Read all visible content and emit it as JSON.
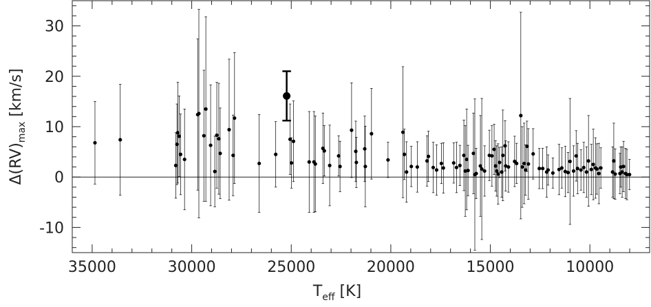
{
  "chart_data": {
    "type": "scatter",
    "xlabel": {
      "main": "T",
      "sub": "eff",
      "rest": " [K]"
    },
    "ylabel": {
      "main": "Δ(RV)",
      "sub": "max",
      "rest": " [km/s]"
    },
    "xlim": [
      36000,
      7000
    ],
    "ylim": [
      -15,
      35
    ],
    "xticks": [
      35000,
      30000,
      25000,
      20000,
      15000,
      10000
    ],
    "yticks": [
      -10,
      0,
      10,
      20,
      30
    ],
    "xticks_minor": [
      34000,
      33000,
      32000,
      31000,
      29000,
      28000,
      27000,
      26000,
      24000,
      23000,
      22000,
      21000,
      19000,
      18000,
      17000,
      16000,
      14000,
      13000,
      12000,
      11000,
      9000,
      8000
    ],
    "yticks_minor": [
      -14,
      -12,
      -8,
      -6,
      -4,
      -2,
      2,
      4,
      6,
      8,
      12,
      14,
      16,
      18,
      22,
      24,
      26,
      28,
      32,
      34
    ],
    "hline": 0,
    "series": [
      {
        "color": "#000000",
        "marker_size": 2.6,
        "line_width": 0.7,
        "x": [
          34860,
          33590,
          30800,
          30740,
          30700,
          30630,
          30560,
          30360,
          29700,
          29640,
          29390,
          29290,
          29050,
          28840,
          28740,
          28640,
          28570,
          28120,
          27920,
          27850,
          26610,
          25780,
          25060,
          24990,
          24890,
          24100,
          23860,
          23790,
          23410,
          23340,
          23070,
          22620,
          22550,
          21970,
          21760,
          21730,
          21310,
          21280,
          20970,
          20140,
          19390,
          19320,
          19210,
          18970,
          18670,
          18180,
          18110,
          17870,
          17700,
          17460,
          17360,
          16840,
          16700,
          16530,
          16330,
          16260,
          16190,
          16120,
          15850,
          15780,
          15710,
          15500,
          15430,
          15290,
          15050,
          14920,
          14810,
          14740,
          14680,
          14610,
          14540,
          14430,
          14370,
          14260,
          14230,
          14090,
          13780,
          13680,
          13470,
          13400,
          13300,
          13230,
          13160,
          13090,
          12850,
          12540,
          12370,
          12170,
          12100,
          11860,
          11550,
          11410,
          11240,
          11100,
          11000,
          10820,
          10690,
          10620,
          10450,
          10310,
          10170,
          10070,
          9930,
          9830,
          9720,
          9650,
          9550,
          9450,
          8860,
          8800,
          8730,
          8490,
          8450,
          8380,
          8310,
          8210,
          8140,
          8010
        ],
        "values": [
          6.8,
          7.4,
          2.3,
          6.5,
          8.8,
          8.1,
          4.5,
          3.5,
          12.4,
          12.6,
          8.2,
          13.5,
          6.3,
          1.1,
          8.3,
          7.6,
          4.7,
          9.4,
          4.3,
          11.7,
          2.7,
          4.5,
          7.5,
          2.8,
          7.1,
          3.0,
          3.0,
          2.6,
          5.7,
          5.2,
          2.3,
          4.2,
          2.1,
          9.3,
          5.1,
          2.9,
          5.6,
          2.1,
          8.6,
          3.4,
          8.9,
          4.5,
          1.0,
          2.1,
          2.0,
          3.2,
          4.1,
          1.9,
          1.4,
          2.7,
          1.8,
          2.8,
          1.9,
          2.3,
          4.3,
          1.2,
          3.5,
          1.3,
          4.7,
          0.5,
          0.7,
          2.2,
          1.6,
          1.2,
          4.3,
          4.2,
          5.5,
          2.2,
          1.2,
          0.6,
          2.9,
          1.0,
          4.3,
          6.2,
          2.2,
          2.0,
          3.1,
          2.7,
          12.2,
          2.0,
          2.7,
          1.4,
          6.1,
          2.6,
          4.6,
          1.7,
          1.7,
          1.0,
          1.4,
          0.8,
          1.5,
          1.8,
          1.1,
          0.9,
          3.1,
          1.2,
          4.2,
          1.7,
          1.4,
          1.9,
          1.0,
          3.2,
          1.5,
          2.5,
          1.8,
          1.6,
          0.7,
          1.8,
          1.0,
          3.2,
          0.6,
          0.7,
          2.0,
          1.0,
          2.1,
          0.7,
          0.5,
          0.5
        ],
        "errors": [
          8.2,
          11,
          6.5,
          8,
          10,
          8,
          8,
          10,
          15,
          20.7,
          13,
          18.3,
          12,
          7,
          10.5,
          11,
          9,
          14,
          8,
          13,
          9.7,
          6.5,
          7,
          5,
          8,
          10,
          10,
          9.5,
          7,
          5,
          8,
          4,
          5,
          9.4,
          6,
          5,
          6.5,
          8,
          9,
          3.5,
          13,
          5,
          6,
          4,
          5,
          5,
          5,
          5,
          5,
          4,
          5,
          4,
          5,
          4,
          7,
          9,
          10,
          5,
          8,
          15,
          5,
          10,
          14,
          5,
          5,
          6,
          5,
          5,
          5,
          6,
          3,
          5,
          9,
          5,
          5,
          5,
          5,
          4,
          20.5,
          8,
          8,
          5,
          5,
          7,
          5,
          4,
          4,
          5,
          3,
          3,
          5,
          4,
          5,
          4,
          12.5,
          5,
          5,
          5,
          4,
          5,
          5,
          9,
          5,
          7,
          6,
          5,
          6,
          4,
          5,
          7.5,
          5,
          4,
          4,
          5,
          5,
          5,
          5,
          3
        ]
      },
      {
        "color": "#000000",
        "marker_size": 5.5,
        "line_width": 2.5,
        "x": [
          25230
        ],
        "values": [
          16.1
        ],
        "errors": [
          4.9
        ]
      }
    ]
  }
}
